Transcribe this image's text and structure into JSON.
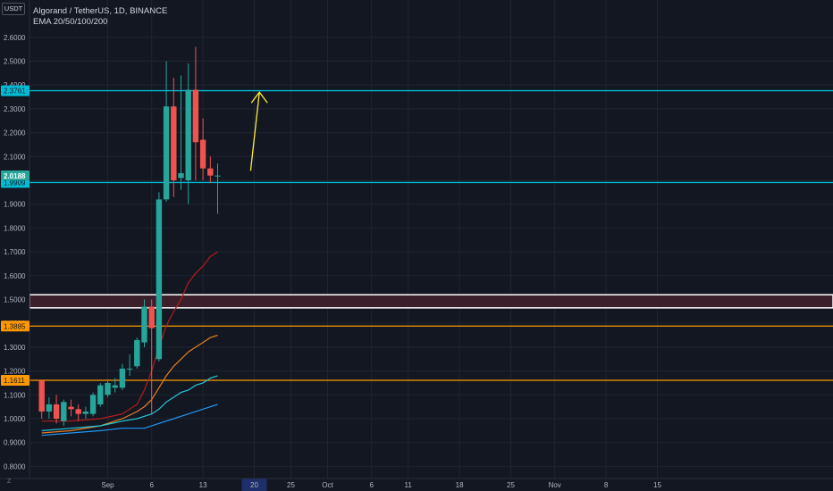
{
  "header": {
    "currency": "USDT",
    "symbol_line": "Algorand / TetherUS, 1D, BINANCE",
    "indicator_line": "EMA 20/50/100/200"
  },
  "bottom_left_label": "Z",
  "colors": {
    "background": "#131722",
    "bull": "#26a69a",
    "bear": "#ef5350",
    "cyan_line": "#00bcd4",
    "orange_line": "#ff9800",
    "white_line": "#ffffff",
    "zone_fill": "#3b1f2b",
    "arrow": "#ffeb3b",
    "time_highlight": "#1e2f6b",
    "ema20": "#b71c1c",
    "ema50": "#e67e22",
    "ema100": "#26c6da",
    "ema200": "#2196f3"
  },
  "chart_data": {
    "type": "candlestick",
    "symbol": "Algorand / TetherUS",
    "interval": "1D",
    "exchange": "BINANCE",
    "ylim": [
      0.76,
      2.63
    ],
    "y_ticks": [
      "2.6000",
      "2.5000",
      "2.4000",
      "2.3000",
      "2.2000",
      "2.1000",
      "2.0000",
      "1.9000",
      "1.8000",
      "1.7000",
      "1.6000",
      "1.5000",
      "1.4000",
      "1.3000",
      "1.2000",
      "1.1000",
      "1.0000",
      "0.9000",
      "0.8000"
    ],
    "x_ticks": [
      {
        "label": "Sep",
        "day": 0
      },
      {
        "label": "6",
        "day": 6
      },
      {
        "label": "13",
        "day": 13
      },
      {
        "label": "20",
        "day": 20,
        "highlight": true
      },
      {
        "label": "25",
        "day": 25
      },
      {
        "label": "Oct",
        "day": 30
      },
      {
        "label": "6",
        "day": 36
      },
      {
        "label": "11",
        "day": 41
      },
      {
        "label": "18",
        "day": 48
      },
      {
        "label": "25",
        "day": 55
      },
      {
        "label": "Nov",
        "day": 61
      },
      {
        "label": "8",
        "day": 68
      },
      {
        "label": "15",
        "day": 75
      }
    ],
    "candles": [
      {
        "day": -9,
        "o": 1.16,
        "h": 1.16,
        "l": 1.0,
        "c": 1.03
      },
      {
        "day": -8,
        "o": 1.03,
        "h": 1.09,
        "l": 1.0,
        "c": 1.06
      },
      {
        "day": -7,
        "o": 1.06,
        "h": 1.1,
        "l": 0.98,
        "c": 1.0
      },
      {
        "day": -6,
        "o": 0.99,
        "h": 1.08,
        "l": 0.97,
        "c": 1.07
      },
      {
        "day": -5,
        "o": 1.05,
        "h": 1.08,
        "l": 1.01,
        "c": 1.04
      },
      {
        "day": -4,
        "o": 1.04,
        "h": 1.06,
        "l": 0.99,
        "c": 1.02
      },
      {
        "day": -3,
        "o": 1.02,
        "h": 1.05,
        "l": 1.0,
        "c": 1.03
      },
      {
        "day": -2,
        "o": 1.02,
        "h": 1.11,
        "l": 1.01,
        "c": 1.1
      },
      {
        "day": -1,
        "o": 1.06,
        "h": 1.15,
        "l": 1.05,
        "c": 1.14
      },
      {
        "day": 0,
        "o": 1.1,
        "h": 1.16,
        "l": 1.09,
        "c": 1.15
      },
      {
        "day": 1,
        "o": 1.13,
        "h": 1.17,
        "l": 1.11,
        "c": 1.14
      },
      {
        "day": 2,
        "o": 1.13,
        "h": 1.23,
        "l": 1.12,
        "c": 1.21
      },
      {
        "day": 3,
        "o": 1.21,
        "h": 1.27,
        "l": 1.18,
        "c": 1.21
      },
      {
        "day": 4,
        "o": 1.22,
        "h": 1.34,
        "l": 1.21,
        "c": 1.33
      },
      {
        "day": 5,
        "o": 1.32,
        "h": 1.5,
        "l": 1.3,
        "c": 1.47
      },
      {
        "day": 6,
        "o": 1.47,
        "h": 1.5,
        "l": 1.02,
        "c": 1.38
      },
      {
        "day": 7,
        "o": 1.25,
        "h": 1.95,
        "l": 1.24,
        "c": 1.92
      },
      {
        "day": 8,
        "o": 1.92,
        "h": 2.5,
        "l": 1.91,
        "c": 2.31
      },
      {
        "day": 9,
        "o": 2.31,
        "h": 2.43,
        "l": 1.93,
        "c": 2.0
      },
      {
        "day": 10,
        "o": 2.01,
        "h": 2.44,
        "l": 1.96,
        "c": 2.03
      },
      {
        "day": 11,
        "o": 2.0,
        "h": 2.49,
        "l": 1.9,
        "c": 2.38
      },
      {
        "day": 12,
        "o": 2.38,
        "h": 2.56,
        "l": 2.0,
        "c": 2.16
      },
      {
        "day": 13,
        "o": 2.17,
        "h": 2.26,
        "l": 2.0,
        "c": 2.05
      },
      {
        "day": 14,
        "o": 2.05,
        "h": 2.1,
        "l": 1.99,
        "c": 2.02
      },
      {
        "day": 15,
        "o": 2.02,
        "h": 2.07,
        "l": 1.86,
        "c": 2.02
      }
    ],
    "horizontal_levels": [
      {
        "value": 2.3761,
        "label": "2.3761",
        "color": "#00bcd4"
      },
      {
        "value": 1.9909,
        "label": "1.9909",
        "color": "#00bcd4"
      },
      {
        "value": 1.3885,
        "label": "1.3885",
        "color": "#ff9800"
      },
      {
        "value": 1.1611,
        "label": "1.1611",
        "color": "#ff9800"
      }
    ],
    "last_price": {
      "value": 2.0188,
      "label": "2.0188"
    },
    "zone": {
      "top": 1.52,
      "bottom": 1.465,
      "color": "#ffffff"
    },
    "ema_series": [
      {
        "name": "EMA 20",
        "color": "#b71c1c",
        "points": [
          [
            -9,
            0.99
          ],
          [
            -5,
            0.99
          ],
          [
            -1,
            1.0
          ],
          [
            2,
            1.02
          ],
          [
            4,
            1.06
          ],
          [
            5,
            1.12
          ],
          [
            6,
            1.2
          ],
          [
            7,
            1.3
          ],
          [
            8,
            1.39
          ],
          [
            9,
            1.45
          ],
          [
            10,
            1.5
          ],
          [
            11,
            1.57
          ],
          [
            12,
            1.61
          ],
          [
            13,
            1.64
          ],
          [
            14,
            1.68
          ],
          [
            15,
            1.7
          ]
        ]
      },
      {
        "name": "EMA 50",
        "color": "#e67e22",
        "points": [
          [
            -9,
            0.94
          ],
          [
            -5,
            0.95
          ],
          [
            -1,
            0.97
          ],
          [
            2,
            1.0
          ],
          [
            4,
            1.03
          ],
          [
            5,
            1.05
          ],
          [
            6,
            1.08
          ],
          [
            7,
            1.13
          ],
          [
            8,
            1.18
          ],
          [
            9,
            1.22
          ],
          [
            10,
            1.25
          ],
          [
            11,
            1.28
          ],
          [
            12,
            1.3
          ],
          [
            13,
            1.32
          ],
          [
            14,
            1.34
          ],
          [
            15,
            1.35
          ]
        ]
      },
      {
        "name": "EMA 100",
        "color": "#26c6da",
        "points": [
          [
            -9,
            0.95
          ],
          [
            -5,
            0.96
          ],
          [
            -1,
            0.97
          ],
          [
            2,
            0.99
          ],
          [
            4,
            1.0
          ],
          [
            5,
            1.01
          ],
          [
            6,
            1.02
          ],
          [
            7,
            1.04
          ],
          [
            8,
            1.07
          ],
          [
            9,
            1.09
          ],
          [
            10,
            1.11
          ],
          [
            11,
            1.12
          ],
          [
            12,
            1.14
          ],
          [
            13,
            1.15
          ],
          [
            14,
            1.17
          ],
          [
            15,
            1.18
          ]
        ]
      },
      {
        "name": "EMA 200",
        "color": "#2196f3",
        "points": [
          [
            -9,
            0.93
          ],
          [
            -5,
            0.94
          ],
          [
            -1,
            0.95
          ],
          [
            2,
            0.96
          ],
          [
            5,
            0.96
          ],
          [
            7,
            0.98
          ],
          [
            9,
            1.0
          ],
          [
            11,
            1.02
          ],
          [
            13,
            1.04
          ],
          [
            15,
            1.06
          ]
        ]
      }
    ],
    "annotation_arrow": {
      "from": [
        19.5,
        2.04
      ],
      "to": [
        20.7,
        2.37
      ],
      "color": "#ffeb3b"
    }
  }
}
